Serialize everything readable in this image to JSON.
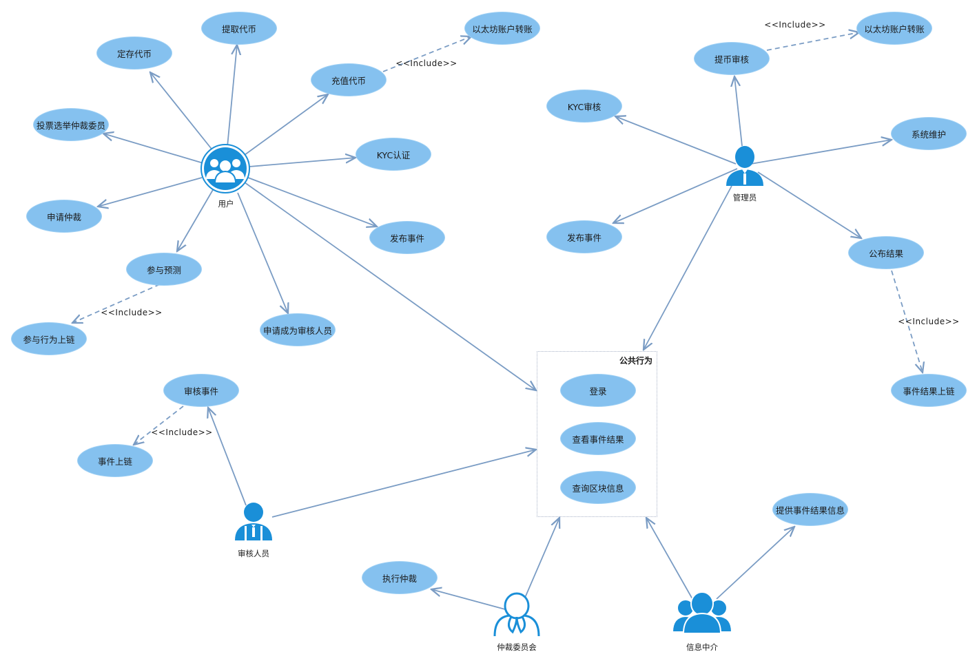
{
  "use_cases": {
    "deposit": "定存代币",
    "withdraw": "提取代币",
    "recharge": "充值代币",
    "eth_transfer_user": "以太坊账户转账",
    "vote_committee": "投票选举仲裁委员",
    "kyc_auth": "KYC认证",
    "apply_arbitration": "申请仲裁",
    "publish_event_user": "发布事件",
    "participate_predict": "参与预测",
    "apply_reviewer": "申请成为审核人员",
    "participate_onchain": "参与行为上链",
    "review_event": "审核事件",
    "event_onchain": "事件上链",
    "withdraw_review": "提币审核",
    "eth_transfer_admin": "以太坊账户转账",
    "kyc_review": "KYC审核",
    "system_maint": "系统维护",
    "publish_event_admin": "发布事件",
    "publish_result": "公布结果",
    "result_onchain": "事件结果上链",
    "login": "登录",
    "view_result": "查看事件结果",
    "query_block": "查询区块信息",
    "execute_arbitration": "执行仲裁",
    "provide_result": "提供事件结果信息"
  },
  "actors": {
    "user": "用户",
    "admin": "管理员",
    "reviewer": "审核人员",
    "committee": "仲裁委员会",
    "oracle": "信息中介"
  },
  "boundary": {
    "title": "公共行为"
  },
  "relations": {
    "include_recharge": "<<Include>>",
    "include_predict": "<<Include>>",
    "include_review": "<<Include>>",
    "include_withdraw_review": "<<Include>>",
    "include_publish": "<<Include>>"
  },
  "colors": {
    "use_case_fill": "#85c1ef",
    "actor_blue": "#1a8fd8",
    "line": "#7a9cc4"
  }
}
